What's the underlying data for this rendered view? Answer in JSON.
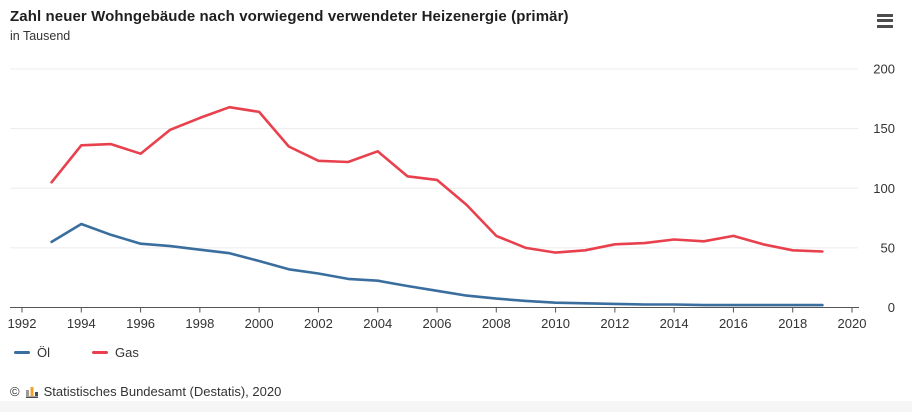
{
  "header": {
    "title": "Zahl neuer Wohngebäude nach vorwiegend verwendeter Heizenergie (primär)",
    "subtitle": "in Tausend"
  },
  "chart_data": {
    "type": "line",
    "title": "Zahl neuer Wohngebäude nach vorwiegend verwendeter Heizenergie (primär)",
    "ylabel": "in Tausend",
    "xlabel": "",
    "x": [
      1993,
      1994,
      1995,
      1996,
      1997,
      1998,
      1999,
      2000,
      2001,
      2002,
      2003,
      2004,
      2005,
      2006,
      2007,
      2008,
      2009,
      2010,
      2011,
      2012,
      2013,
      2014,
      2015,
      2016,
      2017,
      2018,
      2019
    ],
    "series": [
      {
        "name": "Öl",
        "color": "#3a6e9e",
        "values": [
          55,
          70,
          61,
          53.5,
          51.5,
          48.5,
          45.5,
          39,
          32,
          28.5,
          24,
          22.5,
          18,
          14,
          10,
          7.5,
          5.5,
          4,
          3.5,
          3,
          2.5,
          2.5,
          2,
          2,
          2,
          2,
          2
        ]
      },
      {
        "name": "Gas",
        "color": "#e8414d",
        "values": [
          105,
          136,
          137,
          129,
          149,
          159,
          168,
          164,
          135,
          123,
          122,
          131,
          110,
          107,
          86,
          60,
          50,
          46,
          48,
          53,
          54,
          57,
          55.5,
          60,
          53,
          48,
          47
        ]
      }
    ],
    "xlim": [
      1992,
      2020
    ],
    "ylim": [
      0,
      200
    ],
    "xticks": [
      1992,
      1994,
      1996,
      1998,
      2000,
      2002,
      2004,
      2006,
      2008,
      2010,
      2012,
      2014,
      2016,
      2018,
      2020
    ],
    "yticks": [
      0,
      50,
      100,
      150,
      200
    ],
    "grid": "horizontal",
    "yaxis_side": "right",
    "legend_position": "bottom-left"
  },
  "footer": {
    "copyright": "©",
    "source": "Statistisches Bundesamt (Destatis), 2020"
  },
  "colors": {
    "axis": "#555555",
    "grid": "#ececec",
    "tick_text": "#333333",
    "logo_gray": "#9a9a9a",
    "logo_orange": "#f0a22b",
    "logo_dark": "#4a4a4a"
  }
}
